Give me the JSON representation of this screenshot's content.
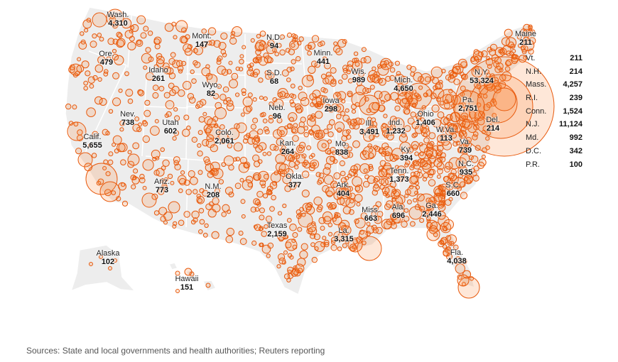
{
  "colors": {
    "land": "#ededed",
    "border": "#ffffff",
    "bubble_stroke": "#e8590c",
    "bubble_fill": "rgba(247,120,40,0.18)"
  },
  "states": [
    {
      "id": "wa",
      "name": "Wash.",
      "count": "4,310"
    },
    {
      "id": "or",
      "name": "Ore.",
      "count": "479"
    },
    {
      "id": "ca",
      "name": "Calif.",
      "count": "5,655"
    },
    {
      "id": "mt",
      "name": "Mont.",
      "count": "147"
    },
    {
      "id": "id",
      "name": "Idaho",
      "count": "261"
    },
    {
      "id": "wy",
      "name": "Wyo.",
      "count": "82"
    },
    {
      "id": "nv",
      "name": "Nev.",
      "count": "738"
    },
    {
      "id": "ut",
      "name": "Utah",
      "count": "602"
    },
    {
      "id": "co",
      "name": "Colo.",
      "count": "2,061"
    },
    {
      "id": "az",
      "name": "Ariz.",
      "count": "773"
    },
    {
      "id": "nm",
      "name": "N.M.",
      "count": "208"
    },
    {
      "id": "nd",
      "name": "N.D.",
      "count": "94"
    },
    {
      "id": "sd",
      "name": "S.D.",
      "count": "68"
    },
    {
      "id": "ne",
      "name": "Neb.",
      "count": "96"
    },
    {
      "id": "ks",
      "name": "Kan.",
      "count": "264"
    },
    {
      "id": "ok",
      "name": "Okla.",
      "count": "377"
    },
    {
      "id": "tx",
      "name": "Texas",
      "count": "2,159"
    },
    {
      "id": "mn",
      "name": "Minn.",
      "count": "441"
    },
    {
      "id": "ia",
      "name": "Iowa",
      "count": "298"
    },
    {
      "id": "mo",
      "name": "Mo.",
      "count": "838"
    },
    {
      "id": "ar",
      "name": "Ark.",
      "count": "404"
    },
    {
      "id": "la",
      "name": "La.",
      "count": "3,315"
    },
    {
      "id": "wi",
      "name": "Wis.",
      "count": "989"
    },
    {
      "id": "il",
      "name": "Ill.",
      "count": "3,491"
    },
    {
      "id": "ms",
      "name": "Miss.",
      "count": "663"
    },
    {
      "id": "mi",
      "name": "Mich.",
      "count": "4,650"
    },
    {
      "id": "in",
      "name": "Ind.",
      "count": "1,232"
    },
    {
      "id": "ky",
      "name": "Ky.",
      "count": "394"
    },
    {
      "id": "tn",
      "name": "Tenn.",
      "count": "1,373"
    },
    {
      "id": "al",
      "name": "Ala.",
      "count": "696"
    },
    {
      "id": "oh",
      "name": "Ohio",
      "count": "1,406"
    },
    {
      "id": "ga",
      "name": "Ga.",
      "count": "2,446"
    },
    {
      "id": "fl",
      "name": "Fla.",
      "count": "4,038"
    },
    {
      "id": "sc",
      "name": "S.C.",
      "count": "660"
    },
    {
      "id": "nc",
      "name": "N.C.",
      "count": "935"
    },
    {
      "id": "va",
      "name": "Va.",
      "count": "739"
    },
    {
      "id": "wv",
      "name": "W.Va.",
      "count": "113"
    },
    {
      "id": "pa",
      "name": "Pa.",
      "count": "2,751"
    },
    {
      "id": "ny",
      "name": "N.Y.",
      "count": "53,324"
    },
    {
      "id": "de",
      "name": "Del.",
      "count": "214"
    },
    {
      "id": "me",
      "name": "Maine",
      "count": "211"
    },
    {
      "id": "ak",
      "name": "Alaska",
      "count": "102"
    },
    {
      "id": "hi",
      "name": "Hawaii",
      "count": "151"
    }
  ],
  "side_table": [
    {
      "name": "Vt.",
      "count": "211"
    },
    {
      "name": "N.H.",
      "count": "214"
    },
    {
      "name": "Mass.",
      "count": "4,257"
    },
    {
      "name": "R.I.",
      "count": "239"
    },
    {
      "name": "Conn.",
      "count": "1,524"
    },
    {
      "name": "N.J.",
      "count": "11,124"
    },
    {
      "name": "Md.",
      "count": "992"
    },
    {
      "name": "D.C.",
      "count": "342"
    },
    {
      "name": "P.R.",
      "count": "100"
    }
  ],
  "source": "Sources: State and local governments and health authorities; Reuters reporting"
}
